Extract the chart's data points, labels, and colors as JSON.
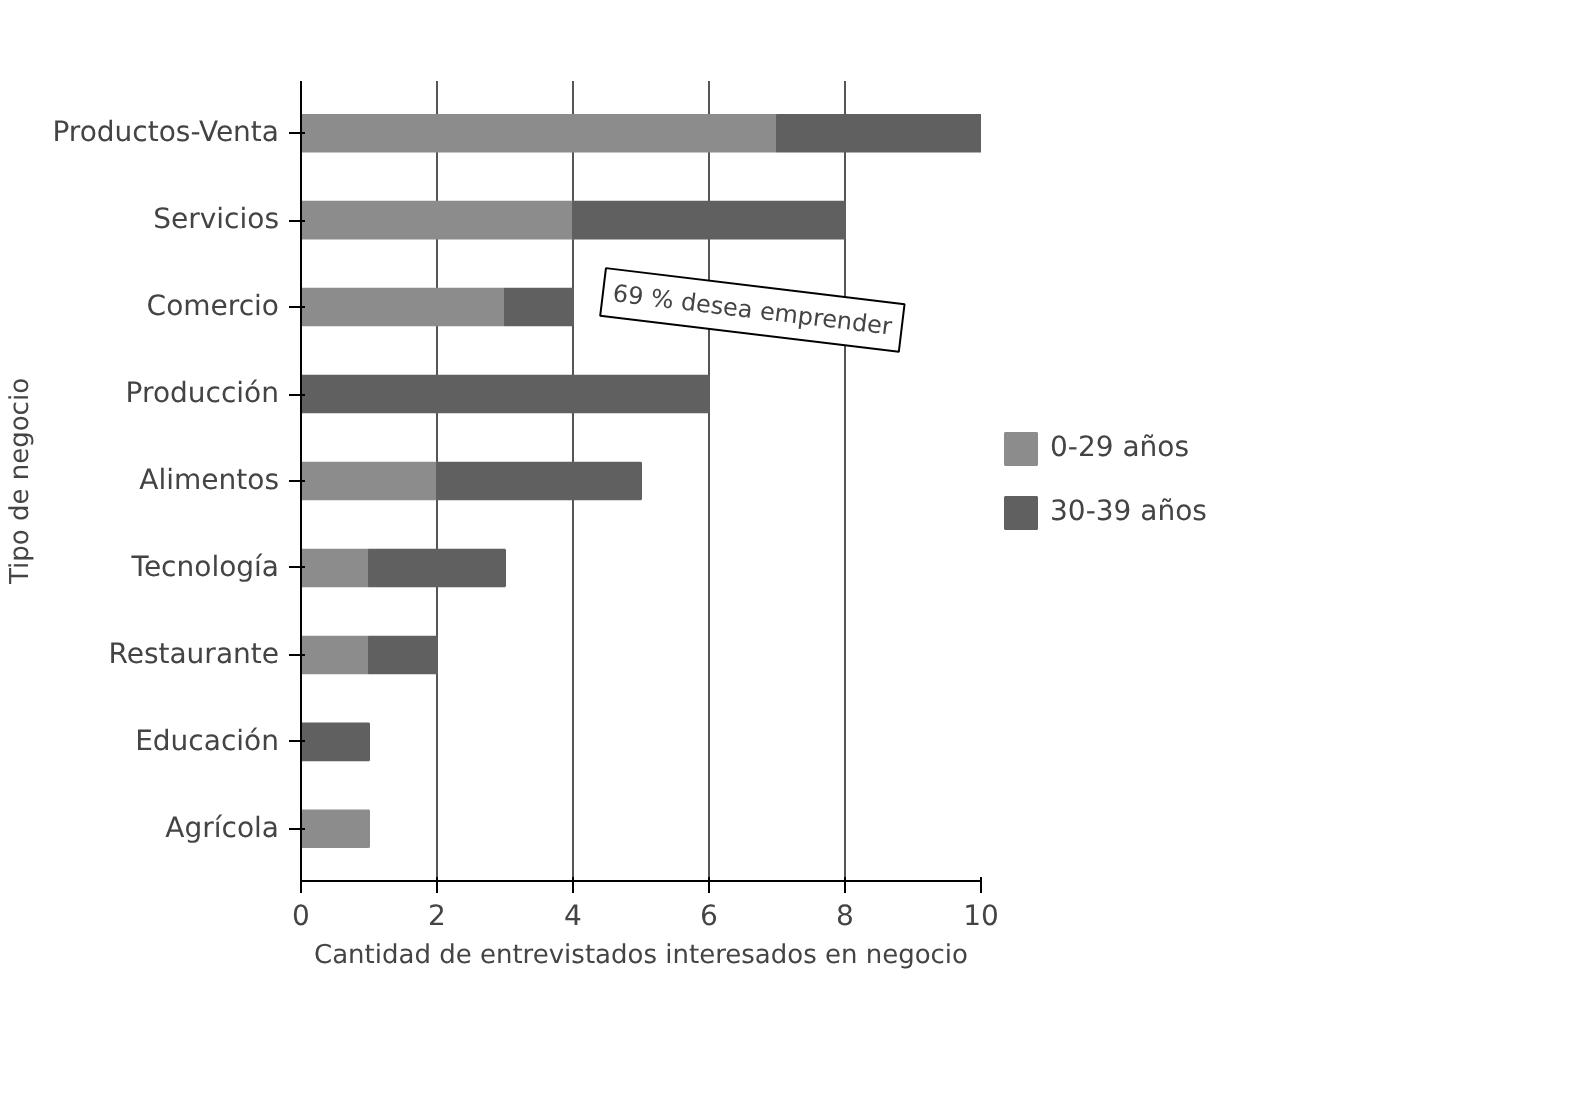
{
  "chart_data": {
    "type": "bar",
    "orientation": "horizontal",
    "stacked": true,
    "xlabel": "Cantidad de entrevistados interesados en negocio",
    "ylabel": "Tipo de negocio",
    "categories": [
      "Productos-Venta",
      "Servicios",
      "Comercio",
      "Producción",
      "Alimentos",
      "Tecnología",
      "Restaurante",
      "Educación",
      "Agrícola"
    ],
    "series": [
      {
        "name": "0-29 años",
        "color": "#8c8c8c",
        "values": [
          7,
          4,
          3,
          0,
          2,
          1,
          1,
          0,
          1
        ]
      },
      {
        "name": "30-39 años",
        "color": "#606060",
        "values": [
          3,
          4,
          1,
          6,
          3,
          2,
          1,
          1,
          0
        ]
      }
    ],
    "xlim": [
      0,
      10
    ],
    "xticks": [
      0,
      2,
      4,
      6,
      8,
      10
    ],
    "grid": "x",
    "legend": "right",
    "annotations": [
      "69 % desea emprender"
    ]
  }
}
